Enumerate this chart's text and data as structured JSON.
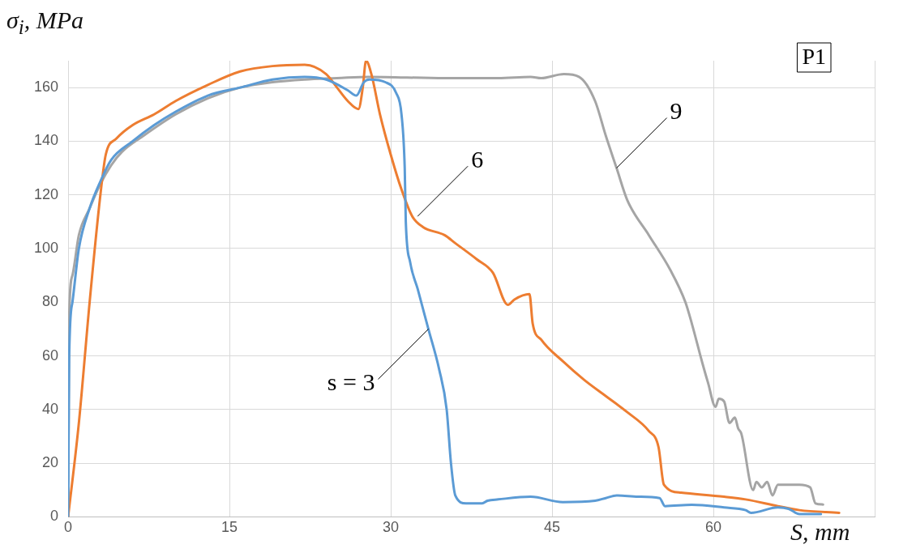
{
  "chart_data": {
    "type": "line",
    "xlabel": "S, mm",
    "ylabel": "σ$_{i}$, MPa",
    "xlim": [
      0,
      75
    ],
    "xticks": [
      0,
      15,
      30,
      45,
      60,
      {
        "value": 75,
        "label": null
      }
    ],
    "ylim": [
      0,
      170
    ],
    "yticks": [
      0,
      20,
      40,
      60,
      80,
      100,
      120,
      140,
      160
    ],
    "grid": true,
    "legend": false,
    "marker": "none",
    "line_style": "solid",
    "series": [
      {
        "color": "#5b9bd5",
        "x": [
          0,
          0.1,
          0.4,
          1,
          2,
          3,
          4,
          6,
          8,
          10,
          13,
          16,
          19,
          22,
          24,
          26,
          26.8,
          27.5,
          28,
          29.5,
          30.5,
          31,
          31.3,
          31.4,
          31.8,
          32.5,
          33.5,
          34.5,
          35.2,
          35.6,
          36,
          37,
          38.5,
          39,
          40,
          43,
          46,
          49,
          50,
          51,
          53,
          55,
          55.5,
          58,
          61,
          63,
          63.5,
          66,
          67,
          68,
          70
        ],
        "values": [
          0,
          60,
          80,
          100,
          115,
          125,
          133,
          140,
          146,
          151,
          157,
          160,
          163,
          164,
          163,
          159,
          157,
          162,
          163,
          162,
          158,
          150,
          130,
          110,
          95,
          85,
          70,
          55,
          40,
          20,
          8,
          5,
          5,
          6,
          6.5,
          7.5,
          5.5,
          6,
          7,
          8,
          7.5,
          7,
          4,
          4.5,
          3.5,
          2.5,
          1.5,
          3.5,
          3,
          1,
          1
        ]
      },
      {
        "color": "#ed7d31",
        "x": [
          0,
          1,
          2,
          3,
          3.5,
          4.5,
          6,
          8,
          10,
          13,
          16,
          19,
          22,
          24,
          25,
          26,
          27,
          27.4,
          27.7,
          28.2,
          29,
          30,
          31,
          32,
          33,
          35,
          36,
          38,
          39.5,
          40.9,
          41.5,
          42.9,
          43.2,
          44,
          46,
          48,
          50,
          52,
          54,
          54.9,
          55.4,
          57,
          61,
          63,
          66,
          68,
          71.7
        ],
        "values": [
          0,
          35,
          80,
          120,
          135,
          141,
          146,
          150,
          155,
          161,
          166,
          168,
          168.5,
          165,
          160,
          155,
          152,
          160,
          170,
          165,
          150,
          135,
          122,
          112,
          108,
          105,
          102,
          96,
          91,
          79,
          81,
          83,
          72,
          66,
          58,
          51,
          45,
          39,
          32,
          26,
          12,
          9,
          7.5,
          6.5,
          4,
          2.5,
          1.5
        ]
      },
      {
        "color": "#a5a5a5",
        "x": [
          0,
          0.05,
          0.1,
          0.4,
          1,
          2,
          3,
          4,
          5,
          7,
          10,
          13,
          16,
          19,
          22,
          25,
          28,
          35,
          40,
          43,
          44,
          46.1,
          47.5,
          49,
          50,
          51,
          52,
          54,
          56,
          57.4,
          58,
          59,
          59.5,
          60.2,
          60.5,
          61,
          61.5,
          62,
          62.3,
          62.6,
          63.7,
          64,
          64.5,
          65,
          65.5,
          66,
          68,
          69,
          69.5,
          70.2
        ],
        "values": [
          0,
          40,
          75,
          90,
          105,
          115,
          124,
          131,
          136,
          142,
          150,
          156,
          160,
          162,
          163,
          163.5,
          164,
          163.5,
          163.5,
          164,
          163.5,
          165,
          164,
          155,
          142,
          130,
          118,
          105,
          92,
          80,
          72,
          57,
          50,
          41,
          44,
          43,
          35,
          37,
          33,
          31,
          10,
          13,
          11,
          13,
          8,
          12,
          12,
          11,
          5,
          4.6
        ]
      }
    ],
    "annotations": [
      {
        "text": "s = 3",
        "x": 33.5,
        "y": 70
      },
      {
        "text": "6",
        "x": 32.5,
        "y": 112
      },
      {
        "text": "9",
        "x": 51,
        "y": 130
      },
      "P1"
    ]
  }
}
